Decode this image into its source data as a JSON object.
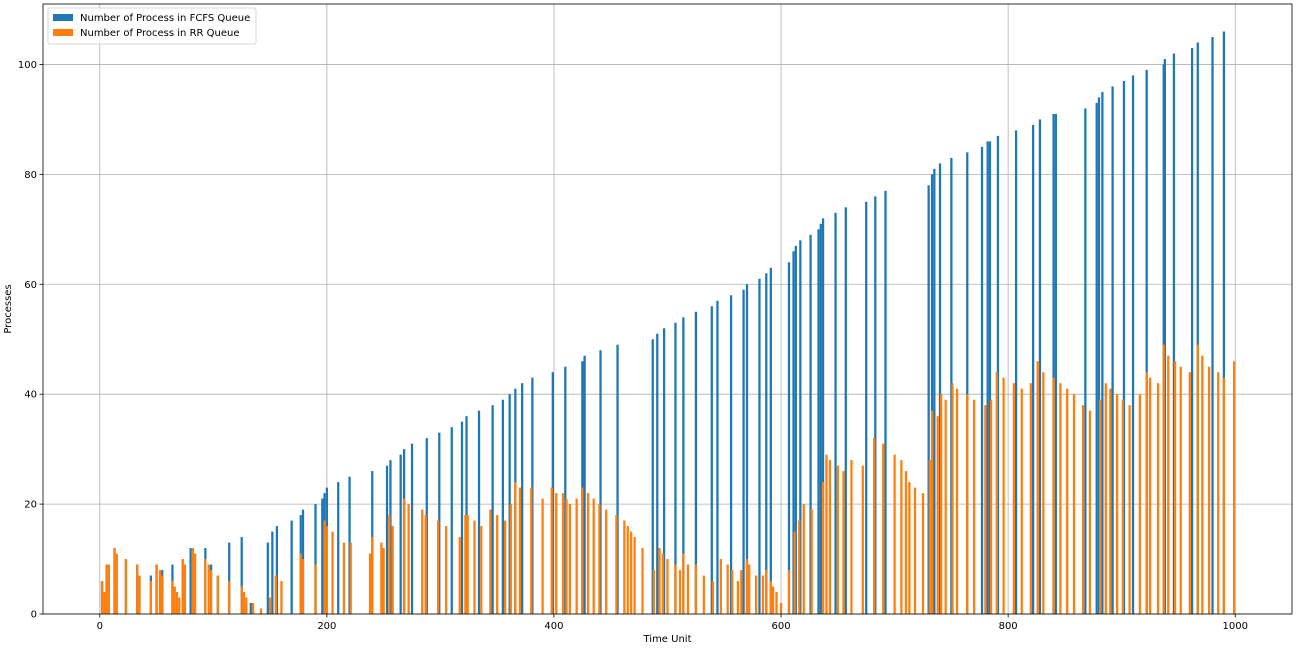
{
  "chart_data": {
    "type": "bar",
    "title": "",
    "xlabel": "Time Unit",
    "ylabel": "Processes",
    "xlim": [
      -50,
      1050
    ],
    "ylim": [
      0,
      111
    ],
    "xticks": [
      0,
      200,
      400,
      600,
      800,
      1000
    ],
    "yticks": [
      0,
      20,
      40,
      60,
      80,
      100
    ],
    "grid": true,
    "legend_position": "top-left",
    "bar_width_units": 2,
    "series": [
      {
        "name": "Number of Process in FCFS Queue",
        "color": "#1f77b4",
        "points": [
          [
            2,
            6
          ],
          [
            6,
            9
          ],
          [
            13,
            12
          ],
          [
            23,
            10
          ],
          [
            33,
            9
          ],
          [
            45,
            7
          ],
          [
            50,
            9
          ],
          [
            55,
            8
          ],
          [
            64,
            9
          ],
          [
            73,
            10
          ],
          [
            80,
            12
          ],
          [
            93,
            12
          ],
          [
            98,
            9
          ],
          [
            104,
            7
          ],
          [
            114,
            13
          ],
          [
            125,
            14
          ],
          [
            127,
            3
          ],
          [
            133,
            2
          ],
          [
            148,
            13
          ],
          [
            152,
            15
          ],
          [
            156,
            16
          ],
          [
            169,
            17
          ],
          [
            177,
            18
          ],
          [
            179,
            19
          ],
          [
            190,
            20
          ],
          [
            196,
            21
          ],
          [
            198,
            22
          ],
          [
            200,
            23
          ],
          [
            210,
            24
          ],
          [
            220,
            25
          ],
          [
            240,
            26
          ],
          [
            253,
            27
          ],
          [
            256,
            28
          ],
          [
            265,
            29
          ],
          [
            268,
            30
          ],
          [
            275,
            31
          ],
          [
            288,
            32
          ],
          [
            299,
            33
          ],
          [
            310,
            34
          ],
          [
            319,
            35
          ],
          [
            323,
            36
          ],
          [
            334,
            37
          ],
          [
            346,
            38
          ],
          [
            355,
            39
          ],
          [
            361,
            40
          ],
          [
            366,
            41
          ],
          [
            372,
            42
          ],
          [
            381,
            43
          ],
          [
            399,
            44
          ],
          [
            410,
            45
          ],
          [
            425,
            46
          ],
          [
            427,
            47
          ],
          [
            441,
            48
          ],
          [
            456,
            49
          ],
          [
            487,
            50
          ],
          [
            491,
            51
          ],
          [
            497,
            52
          ],
          [
            507,
            53
          ],
          [
            514,
            54
          ],
          [
            525,
            55
          ],
          [
            539,
            56
          ],
          [
            544,
            57
          ],
          [
            556,
            58
          ],
          [
            567,
            59
          ],
          [
            570,
            60
          ],
          [
            581,
            61
          ],
          [
            587,
            62
          ],
          [
            591,
            63
          ],
          [
            607,
            64
          ],
          [
            611,
            66
          ],
          [
            613,
            67
          ],
          [
            617,
            68
          ],
          [
            626,
            69
          ],
          [
            633,
            70
          ],
          [
            635,
            71
          ],
          [
            637,
            72
          ],
          [
            648,
            73
          ],
          [
            657,
            74
          ],
          [
            675,
            75
          ],
          [
            683,
            76
          ],
          [
            692,
            77
          ],
          [
            730,
            78
          ],
          [
            733,
            80
          ],
          [
            735,
            81
          ],
          [
            740,
            82
          ],
          [
            750,
            83
          ],
          [
            764,
            84
          ],
          [
            777,
            85
          ],
          [
            782,
            86
          ],
          [
            784,
            86
          ],
          [
            791,
            87
          ],
          [
            807,
            88
          ],
          [
            822,
            89
          ],
          [
            828,
            90
          ],
          [
            840,
            91
          ],
          [
            842,
            91
          ],
          [
            868,
            92
          ],
          [
            878,
            93
          ],
          [
            880,
            94
          ],
          [
            883,
            95
          ],
          [
            892,
            96
          ],
          [
            902,
            97
          ],
          [
            910,
            98
          ],
          [
            922,
            99
          ],
          [
            937,
            100
          ],
          [
            938,
            101
          ],
          [
            946,
            102
          ],
          [
            962,
            103
          ],
          [
            967,
            104
          ],
          [
            980,
            105
          ],
          [
            990,
            106
          ]
        ]
      },
      {
        "name": "Number of Process in RR Queue",
        "color": "#ff7f0e",
        "points": [
          [
            2,
            6
          ],
          [
            4,
            4
          ],
          [
            6,
            9
          ],
          [
            8,
            9
          ],
          [
            13,
            12
          ],
          [
            15,
            11
          ],
          [
            23,
            10
          ],
          [
            33,
            9
          ],
          [
            35,
            7
          ],
          [
            45,
            6
          ],
          [
            50,
            9
          ],
          [
            53,
            8
          ],
          [
            55,
            7
          ],
          [
            64,
            6
          ],
          [
            66,
            5
          ],
          [
            68,
            4
          ],
          [
            70,
            3
          ],
          [
            73,
            10
          ],
          [
            75,
            9
          ],
          [
            82,
            12
          ],
          [
            84,
            11
          ],
          [
            93,
            10
          ],
          [
            96,
            9
          ],
          [
            98,
            8
          ],
          [
            104,
            7
          ],
          [
            114,
            6
          ],
          [
            125,
            5
          ],
          [
            127,
            4
          ],
          [
            129,
            3
          ],
          [
            135,
            2
          ],
          [
            142,
            1
          ],
          [
            150,
            3
          ],
          [
            155,
            7
          ],
          [
            160,
            6
          ],
          [
            177,
            11
          ],
          [
            179,
            10
          ],
          [
            190,
            9
          ],
          [
            198,
            17
          ],
          [
            200,
            16
          ],
          [
            205,
            15
          ],
          [
            215,
            13
          ],
          [
            221,
            13
          ],
          [
            238,
            11
          ],
          [
            240,
            14
          ],
          [
            248,
            13
          ],
          [
            250,
            12
          ],
          [
            255,
            18
          ],
          [
            258,
            16
          ],
          [
            268,
            21
          ],
          [
            272,
            20
          ],
          [
            284,
            19
          ],
          [
            287,
            18
          ],
          [
            298,
            17
          ],
          [
            305,
            16
          ],
          [
            317,
            14
          ],
          [
            322,
            18
          ],
          [
            324,
            18
          ],
          [
            330,
            17
          ],
          [
            336,
            16
          ],
          [
            344,
            19
          ],
          [
            350,
            18
          ],
          [
            357,
            17
          ],
          [
            362,
            20
          ],
          [
            366,
            24
          ],
          [
            370,
            23
          ],
          [
            380,
            23
          ],
          [
            390,
            21
          ],
          [
            398,
            23
          ],
          [
            402,
            22
          ],
          [
            408,
            22
          ],
          [
            411,
            21
          ],
          [
            414,
            20
          ],
          [
            420,
            21
          ],
          [
            425,
            23
          ],
          [
            430,
            22
          ],
          [
            435,
            21
          ],
          [
            440,
            20
          ],
          [
            446,
            19
          ],
          [
            455,
            18
          ],
          [
            462,
            17
          ],
          [
            465,
            16
          ],
          [
            468,
            15
          ],
          [
            471,
            14
          ],
          [
            478,
            12
          ],
          [
            488,
            8
          ],
          [
            493,
            12
          ],
          [
            496,
            11
          ],
          [
            500,
            10
          ],
          [
            507,
            9
          ],
          [
            511,
            8
          ],
          [
            514,
            11
          ],
          [
            518,
            9
          ],
          [
            525,
            9
          ],
          [
            532,
            7
          ],
          [
            540,
            6
          ],
          [
            547,
            10
          ],
          [
            553,
            9
          ],
          [
            557,
            8
          ],
          [
            562,
            6
          ],
          [
            565,
            8
          ],
          [
            570,
            10
          ],
          [
            572,
            9
          ],
          [
            578,
            7
          ],
          [
            584,
            7
          ],
          [
            587,
            8
          ],
          [
            591,
            6
          ],
          [
            593,
            5
          ],
          [
            596,
            4
          ],
          [
            600,
            2
          ],
          [
            607,
            8
          ],
          [
            612,
            15
          ],
          [
            616,
            17
          ],
          [
            620,
            20
          ],
          [
            627,
            19
          ],
          [
            637,
            24
          ],
          [
            640,
            29
          ],
          [
            643,
            28
          ],
          [
            650,
            27
          ],
          [
            655,
            26
          ],
          [
            662,
            28
          ],
          [
            672,
            27
          ],
          [
            682,
            32
          ],
          [
            690,
            31
          ],
          [
            700,
            29
          ],
          [
            706,
            28
          ],
          [
            710,
            26
          ],
          [
            713,
            24
          ],
          [
            718,
            23
          ],
          [
            725,
            22
          ],
          [
            731,
            28
          ],
          [
            733,
            37
          ],
          [
            738,
            36
          ],
          [
            741,
            40
          ],
          [
            745,
            39
          ],
          [
            751,
            42
          ],
          [
            755,
            41
          ],
          [
            764,
            40
          ],
          [
            770,
            39
          ],
          [
            780,
            38
          ],
          [
            785,
            39
          ],
          [
            790,
            44
          ],
          [
            796,
            43
          ],
          [
            805,
            42
          ],
          [
            812,
            41
          ],
          [
            820,
            42
          ],
          [
            826,
            46
          ],
          [
            831,
            44
          ],
          [
            840,
            43
          ],
          [
            846,
            42
          ],
          [
            852,
            41
          ],
          [
            858,
            40
          ],
          [
            866,
            38
          ],
          [
            872,
            37
          ],
          [
            881,
            39
          ],
          [
            886,
            42
          ],
          [
            890,
            41
          ],
          [
            896,
            40
          ],
          [
            901,
            39
          ],
          [
            907,
            38
          ],
          [
            916,
            40
          ],
          [
            922,
            44
          ],
          [
            925,
            43
          ],
          [
            932,
            42
          ],
          [
            937,
            49
          ],
          [
            941,
            47
          ],
          [
            947,
            46
          ],
          [
            952,
            45
          ],
          [
            960,
            44
          ],
          [
            967,
            49
          ],
          [
            971,
            47
          ],
          [
            977,
            45
          ],
          [
            985,
            44
          ],
          [
            990,
            43
          ],
          [
            999,
            46
          ]
        ]
      }
    ]
  }
}
